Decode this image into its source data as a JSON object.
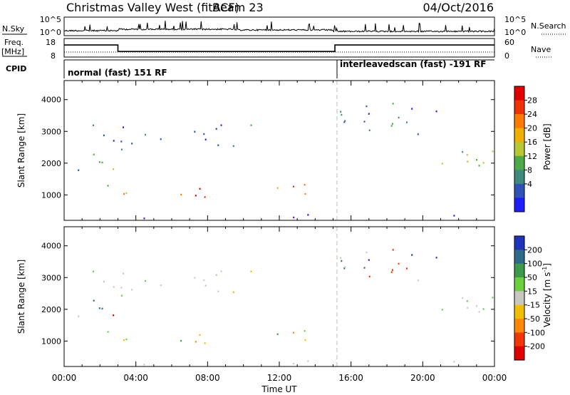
{
  "header": {
    "site": "Christmas Valley West (fitACF)",
    "beam": "Beam 23",
    "date": "04/Oct/2016"
  },
  "top_panels": {
    "nsky_label": "N.Sky",
    "nsky_ticks": [
      "10^5",
      "10^0"
    ],
    "nsearch_label": "N.Search",
    "nsearch_ticks": [
      "10^5",
      "10^0"
    ],
    "freq_label": "Freq.",
    "freq_unit": "[MHz]",
    "freq_ticks": [
      "18",
      "8"
    ],
    "nave_label": "Nave",
    "nave_ticks": [
      "60",
      "0"
    ],
    "cpid_label": "CPID",
    "cpid_segments": [
      {
        "label": "normal (fast) 151 RF",
        "start_hour": 0,
        "end_hour": 15.1
      },
      {
        "label": "interleavedscan (fast) -191 RF",
        "start_hour": 15.1,
        "end_hour": 24
      }
    ],
    "freq_series": [
      {
        "start_hour": 0,
        "end_hour": 3.0,
        "value_mhz": 14.5
      },
      {
        "start_hour": 3.0,
        "end_hour": 15.1,
        "value_mhz": 11.0
      },
      {
        "start_hour": 15.1,
        "end_hour": 24,
        "value_mhz": 14.5
      }
    ]
  },
  "chart_data": [
    {
      "type": "heatmap",
      "panel": "power",
      "ylabel": "Slant Range [km]",
      "xlabel": "",
      "xlim": [
        0,
        24
      ],
      "ylim": [
        200,
        4600
      ],
      "yticks": [
        "1000",
        "2000",
        "3000",
        "4000"
      ],
      "colorbar_label": "Power [dB]",
      "colorbar_ticks": [
        "4",
        "8",
        "12",
        "16",
        "20",
        "24",
        "28"
      ],
      "colorbar_colors": [
        "#1e1eff",
        "#2f52b8",
        "#3e8a7e",
        "#4caa48",
        "#b8c832",
        "#f0b000",
        "#ff7a00",
        "#f03000",
        "#e00000"
      ]
    },
    {
      "type": "heatmap",
      "panel": "velocity",
      "ylabel": "Slant Range [km]",
      "xlabel": "Time UT",
      "xlim": [
        0,
        24
      ],
      "ylim": [
        200,
        4600
      ],
      "xticks": [
        "00:00",
        "04:00",
        "08:00",
        "12:00",
        "16:00",
        "20:00",
        "00:00"
      ],
      "yticks": [
        "1000",
        "2000",
        "3000",
        "4000"
      ],
      "colorbar_label": "Velocity [m s",
      "colorbar_unit_sup": "-1",
      "colorbar_ticks": [
        "200",
        "100",
        "50",
        "15",
        "-15",
        "-50",
        "-100",
        "-200"
      ],
      "colorbar_colors": [
        "#1f34b8",
        "#2f6a8a",
        "#3c9a4a",
        "#6ad040",
        "#c8c8c0",
        "#f0c000",
        "#ff8a00",
        "#f03800",
        "#e00000"
      ]
    }
  ]
}
